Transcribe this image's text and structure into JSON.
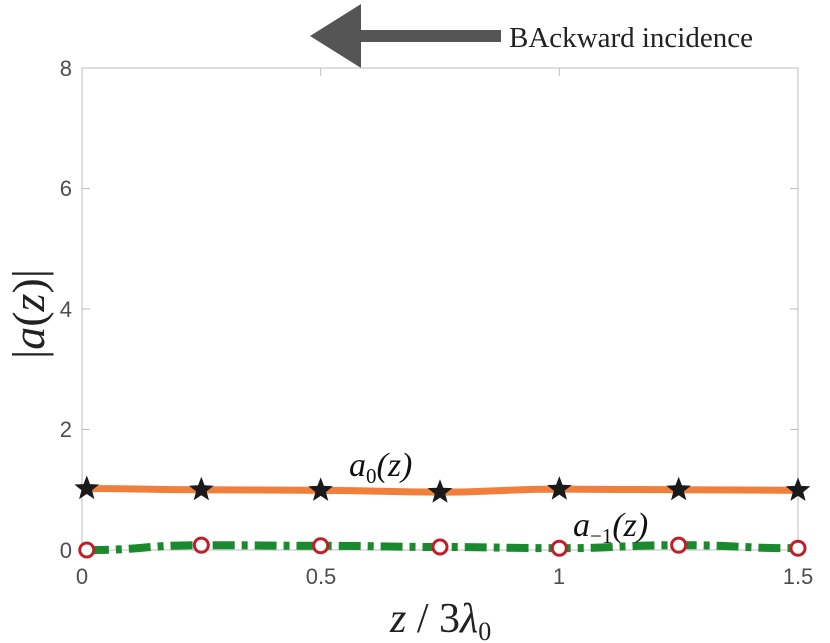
{
  "header": {
    "text": "BAckward incidence"
  },
  "chart_data": {
    "type": "line",
    "xlabel": "z / 3λ0",
    "ylabel": "|a(z)|",
    "xlim": [
      0,
      1.5
    ],
    "ylim": [
      0,
      8
    ],
    "x_ticks": [
      "0",
      "0.5",
      "1",
      "1.5"
    ],
    "y_ticks": [
      "0",
      "2",
      "4",
      "6",
      "8"
    ],
    "grid": false,
    "series": [
      {
        "name": "a0(z)",
        "color": "#f07f3c",
        "line": "solid",
        "marker": "star",
        "marker_color": "#1a1a1a",
        "x": [
          0.01,
          0.25,
          0.5,
          0.75,
          1.0,
          1.25,
          1.5
        ],
        "y": [
          1.02,
          1.0,
          0.99,
          0.96,
          1.01,
          1.0,
          0.99
        ]
      },
      {
        "name": "a-1(z)",
        "color": "#1a8a2e",
        "line": "dashdot",
        "marker": "circle",
        "marker_color": "#c01f2a",
        "x": [
          0.01,
          0.25,
          0.5,
          0.75,
          1.0,
          1.25,
          1.5
        ],
        "y": [
          0.0,
          0.08,
          0.07,
          0.05,
          0.03,
          0.08,
          0.03
        ]
      }
    ],
    "annotations": [
      {
        "label": "a0(z)",
        "main": "a",
        "sub": "0",
        "rest": "(z)"
      },
      {
        "label": "a-1(z)",
        "main": "a",
        "sub": "−1",
        "rest": "(z)"
      }
    ]
  }
}
